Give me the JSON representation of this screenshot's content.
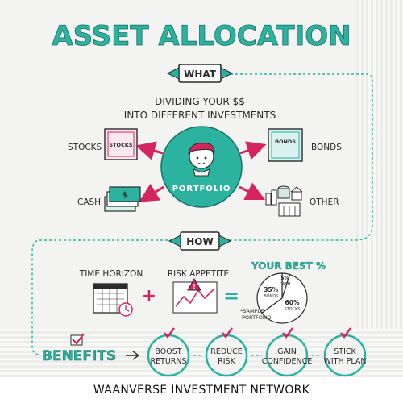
{
  "title": "ASSET ALLOCATION",
  "what": {
    "tag": "WHAT",
    "line1": "DIVIDING YOUR $$",
    "line2": "INTO DIFFERENT INVESTMENTS"
  },
  "portfolio": {
    "label": "PORTFOLIO",
    "left_items": [
      {
        "name": "STOCKS",
        "icon_label": "STOCKS"
      },
      {
        "name": "CASH",
        "icon_label": "$"
      }
    ],
    "right_items": [
      {
        "name": "BONDS",
        "icon_label": "BONDS"
      },
      {
        "name": "OTHER",
        "icon_label": ""
      }
    ]
  },
  "how": {
    "tag": "HOW",
    "factor1": "TIME HORIZON",
    "factor2": "RISK APPETITE",
    "plus": "+",
    "equals": "=",
    "result_title": "YOUR BEST %",
    "sample_note_1": "*SAMPLE",
    "sample_note_2": "PORTFOLIO",
    "pie": {
      "type": "pie",
      "slices": [
        {
          "label": "CASH",
          "value": 5,
          "text": "5%"
        },
        {
          "label": "STOCKS",
          "value": 60,
          "text": "60%"
        },
        {
          "label": "BONDS",
          "value": 35,
          "text": "35%"
        }
      ]
    }
  },
  "benefits": {
    "label": "BENEFITS",
    "items": [
      {
        "line1": "BOOST",
        "line2": "RETURNS"
      },
      {
        "line1": "REDUCE",
        "line2": "RISK"
      },
      {
        "line1": "GAIN",
        "line2": "CONFIDENCE"
      },
      {
        "line1": "STICK",
        "line2": "WITH PLAN"
      }
    ]
  },
  "footer": "WAANVERSE INVESTMENT NETWORK",
  "colors": {
    "teal": "#2bb3a0",
    "dark_teal": "#1b6f64",
    "magenta": "#d6245f",
    "ink": "#2b2b2b"
  }
}
